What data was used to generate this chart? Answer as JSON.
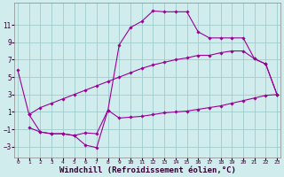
{
  "background_color": "#d0ecec",
  "grid_color": "#a0cccc",
  "line_color": "#990099",
  "marker_color": "#990099",
  "xlabel": "Windchill (Refroidissement éolien,°C)",
  "xlabel_fontsize": 6.5,
  "xticks": [
    0,
    1,
    2,
    3,
    4,
    5,
    6,
    7,
    8,
    9,
    10,
    11,
    12,
    13,
    14,
    15,
    16,
    17,
    18,
    19,
    20,
    21,
    22,
    23
  ],
  "yticks": [
    -3,
    -1,
    1,
    3,
    5,
    7,
    9,
    11
  ],
  "ylim": [
    -4.2,
    13.5
  ],
  "xlim": [
    -0.3,
    23.3
  ],
  "series1_x": [
    0,
    1,
    2,
    3,
    4,
    5,
    6,
    7,
    8,
    9,
    10,
    11,
    12,
    13,
    14,
    15,
    16,
    17,
    18,
    19,
    20,
    21,
    22,
    23
  ],
  "series1_y": [
    5.8,
    0.7,
    -1.3,
    -1.5,
    -1.5,
    -1.7,
    -2.8,
    -3.1,
    1.2,
    8.7,
    10.7,
    11.4,
    12.6,
    12.5,
    12.5,
    12.5,
    10.2,
    9.5,
    9.5,
    9.5,
    9.5,
    7.1,
    6.5,
    3.0
  ],
  "series2_x": [
    1,
    2,
    3,
    4,
    5,
    6,
    7,
    8,
    9,
    10,
    11,
    12,
    13,
    14,
    15,
    16,
    17,
    18,
    19,
    20,
    21,
    22,
    23
  ],
  "series2_y": [
    0.7,
    1.5,
    2.0,
    2.5,
    3.0,
    3.5,
    4.0,
    4.5,
    5.0,
    5.5,
    6.0,
    6.4,
    6.7,
    7.0,
    7.2,
    7.5,
    7.5,
    7.8,
    8.0,
    8.0,
    7.1,
    6.5,
    3.0
  ],
  "series3_x": [
    1,
    2,
    3,
    4,
    5,
    6,
    7,
    8,
    9,
    10,
    11,
    12,
    13,
    14,
    15,
    16,
    17,
    18,
    19,
    20,
    21,
    22,
    23
  ],
  "series3_y": [
    -0.8,
    -1.3,
    -1.5,
    -1.5,
    -1.7,
    -1.4,
    -1.5,
    1.2,
    0.3,
    0.4,
    0.5,
    0.7,
    0.9,
    1.0,
    1.1,
    1.3,
    1.5,
    1.7,
    2.0,
    2.3,
    2.6,
    2.9,
    3.0
  ]
}
